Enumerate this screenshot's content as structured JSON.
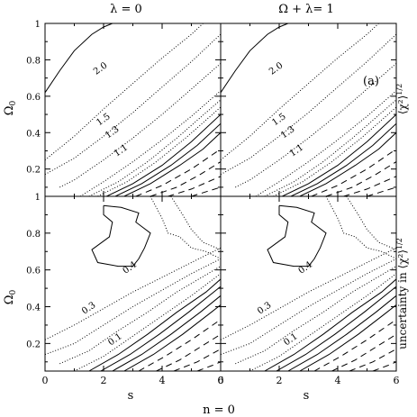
{
  "chart_data": {
    "type": "contour",
    "panel_label": "(a)",
    "column_titles": [
      "λ = 0",
      "Ω + λ= 1"
    ],
    "bottom_label": "n = 0",
    "xlabel": "s",
    "ylabel": "Ω",
    "ylabel_sub": "0",
    "right_labels": [
      "⟨χ²⟩",
      "uncertainty in ⟨χ²⟩"
    ],
    "right_label_exp": "1/2",
    "xlim": [
      0,
      6
    ],
    "top_ylim": [
      0.05,
      1.0
    ],
    "bottom_ylim": [
      0.05,
      1.0
    ],
    "x_ticks": [
      0,
      2,
      4,
      6
    ],
    "x_tick_labels": [
      "0",
      "2",
      "4",
      "6"
    ],
    "y_ticks": [
      0.2,
      0.4,
      0.6,
      0.8,
      1.0
    ],
    "y_tick_labels_top": [
      "0.2",
      "0.4",
      "0.6",
      "0.8",
      "1"
    ],
    "y_tick_labels_bottom": [
      "0.2",
      "0.4",
      "0.6",
      "0.8",
      "1"
    ],
    "contour_labels_top": [
      {
        "text": "2.0",
        "x": 1.9,
        "y": 0.75
      },
      {
        "text": "1.5",
        "x": 2.0,
        "y": 0.47
      },
      {
        "text": "1.3",
        "x": 2.3,
        "y": 0.4
      },
      {
        "text": "1.1",
        "x": 2.6,
        "y": 0.3
      }
    ],
    "contour_labels_bottom": [
      {
        "text": "0.4",
        "x": 2.9,
        "y": 0.61
      },
      {
        "text": "0.3",
        "x": 1.5,
        "y": 0.39
      },
      {
        "text": "0.1",
        "x": 2.4,
        "y": 0.22
      }
    ],
    "top_contours": [
      {
        "style": "solid",
        "points": [
          [
            0,
            0.62
          ],
          [
            0.5,
            0.74
          ],
          [
            1.0,
            0.85
          ],
          [
            1.6,
            0.94
          ],
          [
            2.0,
            0.98
          ],
          [
            2.3,
            1.0
          ]
        ]
      },
      {
        "style": "dotted",
        "points": [
          [
            0,
            0.25
          ],
          [
            1.0,
            0.38
          ],
          [
            2.0,
            0.53
          ],
          [
            3.0,
            0.67
          ],
          [
            4.0,
            0.81
          ],
          [
            5.0,
            0.94
          ],
          [
            5.4,
            1.0
          ]
        ]
      },
      {
        "style": "dotted",
        "points": [
          [
            0,
            0.17
          ],
          [
            1.0,
            0.26
          ],
          [
            2.0,
            0.38
          ],
          [
            3.0,
            0.51
          ],
          [
            4.0,
            0.65
          ],
          [
            5.0,
            0.79
          ],
          [
            6.0,
            0.94
          ]
        ]
      },
      {
        "style": "dotted",
        "points": [
          [
            0.5,
            0.1
          ],
          [
            1.0,
            0.14
          ],
          [
            2.0,
            0.25
          ],
          [
            3.0,
            0.37
          ],
          [
            4.0,
            0.5
          ],
          [
            5.0,
            0.64
          ],
          [
            6.0,
            0.78
          ]
        ]
      },
      {
        "style": "dotted",
        "points": [
          [
            1.2,
            0.05
          ],
          [
            2.0,
            0.13
          ],
          [
            3.0,
            0.24
          ],
          [
            4.0,
            0.36
          ],
          [
            5.0,
            0.49
          ],
          [
            6.0,
            0.63
          ]
        ]
      },
      {
        "style": "dotted",
        "points": [
          [
            1.5,
            0.05
          ],
          [
            2.5,
            0.13
          ],
          [
            3.5,
            0.24
          ],
          [
            4.5,
            0.37
          ],
          [
            6.0,
            0.58
          ]
        ]
      },
      {
        "style": "dotted",
        "points": [
          [
            1.8,
            0.05
          ],
          [
            2.8,
            0.13
          ],
          [
            3.8,
            0.24
          ],
          [
            4.8,
            0.37
          ],
          [
            6.0,
            0.54
          ]
        ]
      },
      {
        "style": "solid",
        "points": [
          [
            2.1,
            0.05
          ],
          [
            3.0,
            0.12
          ],
          [
            4.0,
            0.22
          ],
          [
            5.0,
            0.35
          ],
          [
            6.0,
            0.5
          ]
        ]
      },
      {
        "style": "solid",
        "points": [
          [
            2.4,
            0.05
          ],
          [
            3.3,
            0.12
          ],
          [
            4.3,
            0.22
          ],
          [
            5.2,
            0.33
          ],
          [
            6.0,
            0.45
          ]
        ]
      },
      {
        "style": "solid",
        "points": [
          [
            2.7,
            0.05
          ],
          [
            3.6,
            0.12
          ],
          [
            4.6,
            0.22
          ],
          [
            5.4,
            0.31
          ],
          [
            6.0,
            0.4
          ]
        ]
      },
      {
        "style": "dashed",
        "points": [
          [
            3.1,
            0.05
          ],
          [
            4.0,
            0.11
          ],
          [
            5.0,
            0.2
          ],
          [
            6.0,
            0.31
          ]
        ]
      },
      {
        "style": "dashed",
        "points": [
          [
            3.6,
            0.05
          ],
          [
            4.5,
            0.1
          ],
          [
            5.3,
            0.17
          ],
          [
            6.0,
            0.24
          ]
        ]
      },
      {
        "style": "dashed",
        "points": [
          [
            4.2,
            0.05
          ],
          [
            5.0,
            0.09
          ],
          [
            6.0,
            0.16
          ]
        ]
      },
      {
        "style": "dashed",
        "points": [
          [
            5.0,
            0.05
          ],
          [
            5.6,
            0.08
          ],
          [
            6.0,
            0.1
          ]
        ]
      }
    ],
    "bottom_contours": [
      {
        "style": "solid",
        "points": [
          [
            2.0,
            0.95
          ],
          [
            2.6,
            0.94
          ],
          [
            3.2,
            0.91
          ],
          [
            3.1,
            0.86
          ],
          [
            3.6,
            0.8
          ],
          [
            3.4,
            0.72
          ],
          [
            3.2,
            0.66
          ],
          [
            3.0,
            0.62
          ],
          [
            2.5,
            0.62
          ],
          [
            1.8,
            0.64
          ],
          [
            1.6,
            0.71
          ],
          [
            2.2,
            0.78
          ],
          [
            2.3,
            0.86
          ],
          [
            2.0,
            0.9
          ],
          [
            2.0,
            0.95
          ]
        ]
      },
      {
        "style": "dotted",
        "points": [
          [
            3.6,
            1.0
          ],
          [
            4.0,
            0.88
          ],
          [
            4.2,
            0.8
          ],
          [
            4.6,
            0.78
          ],
          [
            5.0,
            0.72
          ],
          [
            5.5,
            0.7
          ],
          [
            6.0,
            0.66
          ]
        ]
      },
      {
        "style": "dotted",
        "points": [
          [
            4.3,
            1.0
          ],
          [
            4.7,
            0.9
          ],
          [
            5.0,
            0.82
          ],
          [
            5.4,
            0.75
          ],
          [
            6.0,
            0.71
          ]
        ]
      },
      {
        "style": "dotted",
        "points": [
          [
            0,
            0.22
          ],
          [
            1.0,
            0.3
          ],
          [
            2.0,
            0.39
          ],
          [
            3.0,
            0.48
          ],
          [
            4.0,
            0.56
          ],
          [
            5.0,
            0.64
          ],
          [
            6.0,
            0.72
          ]
        ]
      },
      {
        "style": "dotted",
        "points": [
          [
            0,
            0.14
          ],
          [
            1.0,
            0.2
          ],
          [
            2.0,
            0.3
          ],
          [
            3.0,
            0.4
          ],
          [
            4.0,
            0.49
          ],
          [
            5.0,
            0.58
          ],
          [
            6.0,
            0.66
          ]
        ]
      },
      {
        "style": "dotted",
        "points": [
          [
            0.5,
            0.09
          ],
          [
            1.5,
            0.16
          ],
          [
            2.5,
            0.27
          ],
          [
            3.5,
            0.37
          ],
          [
            4.5,
            0.48
          ],
          [
            6.0,
            0.62
          ]
        ]
      },
      {
        "style": "dotted",
        "points": [
          [
            1.0,
            0.05
          ],
          [
            2.0,
            0.13
          ],
          [
            3.0,
            0.24
          ],
          [
            4.0,
            0.35
          ],
          [
            5.0,
            0.46
          ],
          [
            6.0,
            0.58
          ]
        ]
      },
      {
        "style": "solid",
        "points": [
          [
            1.5,
            0.05
          ],
          [
            2.5,
            0.14
          ],
          [
            3.5,
            0.25
          ],
          [
            4.5,
            0.37
          ],
          [
            5.5,
            0.48
          ],
          [
            6.0,
            0.55
          ]
        ]
      },
      {
        "style": "solid",
        "points": [
          [
            1.9,
            0.05
          ],
          [
            2.9,
            0.14
          ],
          [
            3.9,
            0.25
          ],
          [
            4.9,
            0.37
          ],
          [
            6.0,
            0.51
          ]
        ]
      },
      {
        "style": "solid",
        "points": [
          [
            2.3,
            0.05
          ],
          [
            3.3,
            0.14
          ],
          [
            4.3,
            0.25
          ],
          [
            5.3,
            0.37
          ],
          [
            6.0,
            0.46
          ]
        ]
      },
      {
        "style": "solid",
        "points": [
          [
            2.7,
            0.05
          ],
          [
            3.7,
            0.14
          ],
          [
            4.7,
            0.25
          ],
          [
            5.6,
            0.36
          ],
          [
            6.0,
            0.41
          ]
        ]
      },
      {
        "style": "dashed",
        "points": [
          [
            3.2,
            0.05
          ],
          [
            4.1,
            0.13
          ],
          [
            5.0,
            0.22
          ],
          [
            6.0,
            0.33
          ]
        ]
      },
      {
        "style": "dashed",
        "points": [
          [
            3.8,
            0.05
          ],
          [
            4.6,
            0.11
          ],
          [
            5.4,
            0.19
          ],
          [
            6.0,
            0.25
          ]
        ]
      },
      {
        "style": "dashed",
        "points": [
          [
            4.4,
            0.05
          ],
          [
            5.2,
            0.1
          ],
          [
            6.0,
            0.17
          ]
        ]
      },
      {
        "style": "dashed",
        "points": [
          [
            5.2,
            0.05
          ],
          [
            5.7,
            0.08
          ],
          [
            6.0,
            0.1
          ]
        ]
      }
    ]
  }
}
